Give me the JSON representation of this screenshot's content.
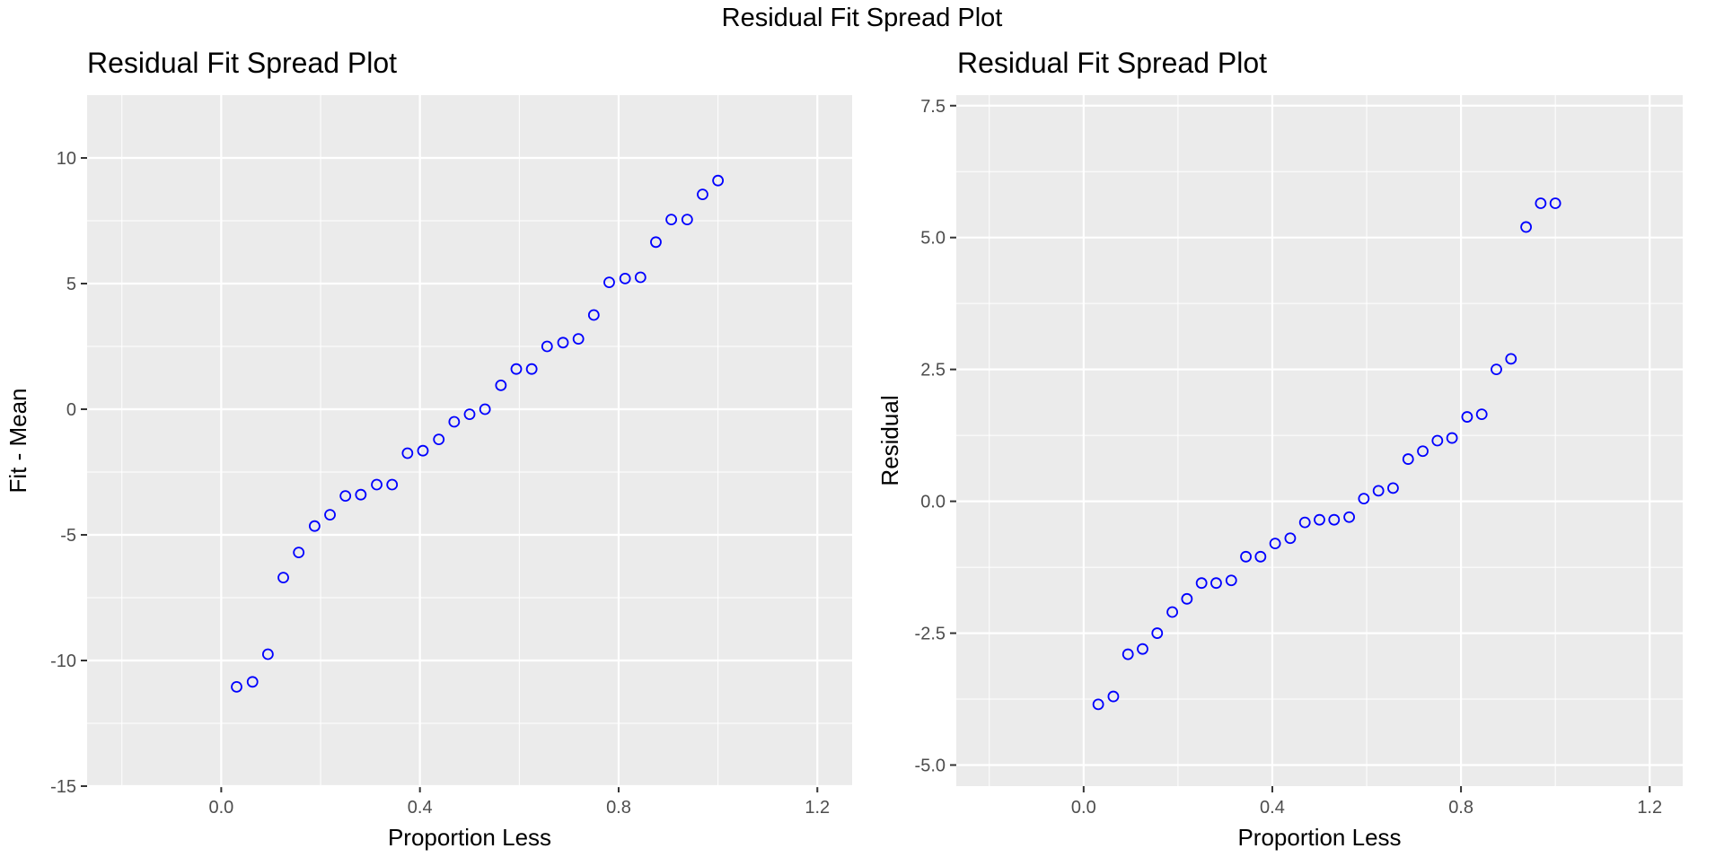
{
  "figure": {
    "suptitle": "Residual Fit Spread Plot"
  },
  "colors": {
    "panel_bg": "#EBEBEB",
    "grid": "#FFFFFF",
    "point": "#0000FF",
    "axis_text": "#4D4D4D",
    "title": "#000000"
  },
  "chart_data": [
    {
      "type": "scatter",
      "title": "Residual Fit Spread Plot",
      "xlabel": "Proportion Less",
      "ylabel": "Fit - Mean",
      "xlim": [
        -0.27,
        1.27
      ],
      "ylim": [
        -15,
        12.5
      ],
      "x_ticks": [
        0.0,
        0.4,
        0.8,
        1.2
      ],
      "x_tick_labels": [
        "0.0",
        "0.4",
        "0.8",
        "1.2"
      ],
      "y_ticks": [
        -15,
        -10,
        -5,
        0,
        5,
        10
      ],
      "y_tick_labels": [
        "-15",
        "-10",
        "-5",
        "0",
        "5",
        "10"
      ],
      "grid": true,
      "marker": "open-circle",
      "x": [
        0.031,
        0.063,
        0.094,
        0.125,
        0.156,
        0.188,
        0.219,
        0.25,
        0.281,
        0.313,
        0.344,
        0.375,
        0.406,
        0.438,
        0.469,
        0.5,
        0.531,
        0.563,
        0.594,
        0.625,
        0.656,
        0.688,
        0.719,
        0.75,
        0.781,
        0.813,
        0.844,
        0.875,
        0.906,
        0.938,
        0.969,
        1.0
      ],
      "y": [
        -11.05,
        -10.85,
        -9.75,
        -6.7,
        -5.7,
        -4.65,
        -4.2,
        -3.45,
        -3.4,
        -3.0,
        -3.0,
        -1.75,
        -1.65,
        -1.2,
        -0.5,
        -0.2,
        0.0,
        0.95,
        1.6,
        1.6,
        2.5,
        2.65,
        2.8,
        3.75,
        5.05,
        5.2,
        5.25,
        6.65,
        7.55,
        7.55,
        8.55,
        9.1
      ]
    },
    {
      "type": "scatter",
      "title": "Residual Fit Spread Plot",
      "xlabel": "Proportion Less",
      "ylabel": "Residual",
      "xlim": [
        -0.27,
        1.27
      ],
      "ylim": [
        -5.4,
        7.7
      ],
      "x_ticks": [
        0.0,
        0.4,
        0.8,
        1.2
      ],
      "x_tick_labels": [
        "0.0",
        "0.4",
        "0.8",
        "1.2"
      ],
      "y_ticks": [
        -5.0,
        -2.5,
        0.0,
        2.5,
        5.0,
        7.5
      ],
      "y_tick_labels": [
        "-5.0",
        "-2.5",
        "0.0",
        "2.5",
        "5.0",
        "7.5"
      ],
      "grid": true,
      "marker": "open-circle",
      "x": [
        0.031,
        0.063,
        0.094,
        0.125,
        0.156,
        0.188,
        0.219,
        0.25,
        0.281,
        0.313,
        0.344,
        0.375,
        0.406,
        0.438,
        0.469,
        0.5,
        0.531,
        0.563,
        0.594,
        0.625,
        0.656,
        0.688,
        0.719,
        0.75,
        0.781,
        0.813,
        0.844,
        0.875,
        0.906,
        0.938,
        0.969,
        1.0
      ],
      "y": [
        -3.85,
        -3.7,
        -2.9,
        -2.8,
        -2.5,
        -2.1,
        -1.85,
        -1.55,
        -1.55,
        -1.5,
        -1.05,
        -1.05,
        -0.8,
        -0.7,
        -0.4,
        -0.35,
        -0.35,
        -0.3,
        0.05,
        0.2,
        0.25,
        0.8,
        0.95,
        1.15,
        1.2,
        1.6,
        1.65,
        2.5,
        2.7,
        5.2,
        5.65,
        5.65
      ]
    }
  ]
}
